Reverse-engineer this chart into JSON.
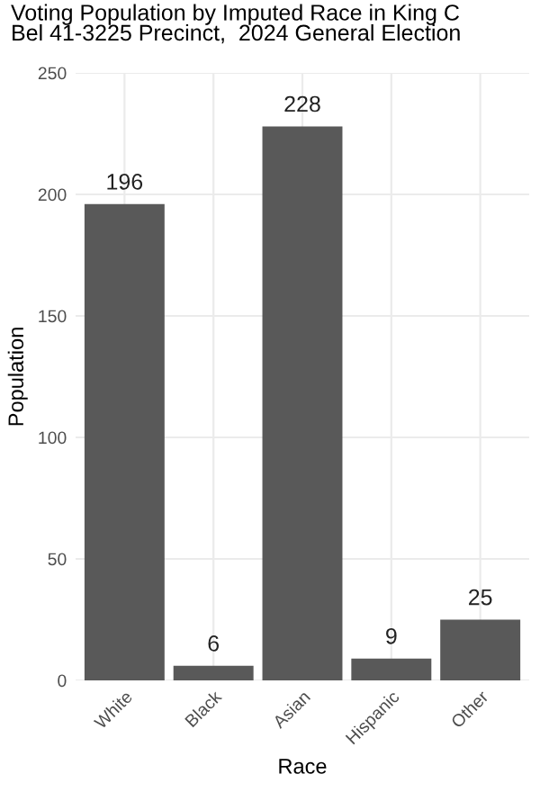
{
  "chart_data": {
    "type": "bar",
    "title": "Voting Population by Imputed Race in King C\nBel 41-3225 Precinct,  2024 General Election",
    "xlabel": "Race",
    "ylabel": "Population",
    "categories": [
      "White",
      "Black",
      "Asian",
      "Hispanic",
      "Other"
    ],
    "values": [
      196,
      6,
      228,
      9,
      25
    ],
    "color": "#595959",
    "ylim": [
      0,
      250
    ],
    "yticks": [
      0,
      50,
      100,
      150,
      200,
      250
    ],
    "grid": true,
    "data_labels": true
  }
}
